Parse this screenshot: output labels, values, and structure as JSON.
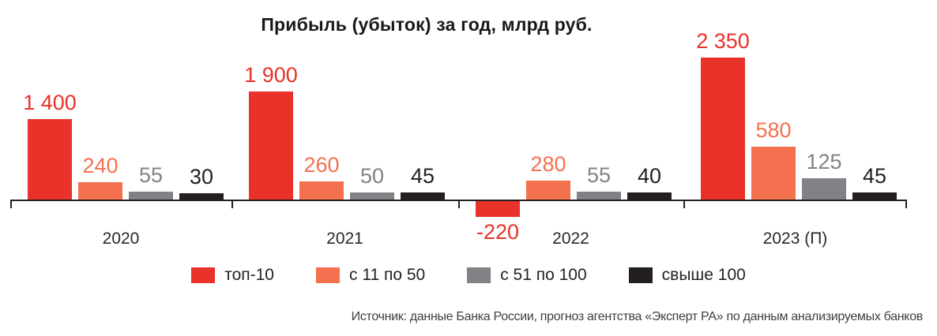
{
  "title": "Прибыль (убыток) за год, млрд руб.",
  "source": "Источник: данные Банка России, прогноз агентства «Эксперт РА» по данным анализируемых банков",
  "chart_data": {
    "type": "bar",
    "title": "Прибыль (убыток) за год, млрд руб.",
    "unit": "млрд руб.",
    "categories": [
      "2020",
      "2021",
      "2022",
      "2023 (П)"
    ],
    "series": [
      {
        "name": "топ-10",
        "color": "#e93229",
        "values": [
          1400,
          1900,
          -220,
          2350
        ],
        "labels": [
          "1 400",
          "1 900",
          "-220",
          "2 350"
        ]
      },
      {
        "name": "с 11 по 50",
        "color": "#f4714f",
        "values": [
          240,
          260,
          280,
          580
        ],
        "labels": [
          "240",
          "260",
          "280",
          "580"
        ]
      },
      {
        "name": "с 51 по 100",
        "color": "#808285",
        "values": [
          55,
          50,
          55,
          125
        ],
        "labels": [
          "55",
          "50",
          "55",
          "125"
        ]
      },
      {
        "name": "свыше 100",
        "color": "#231f20",
        "values": [
          30,
          45,
          40,
          45
        ],
        "labels": [
          "30",
          "45",
          "40",
          "45"
        ]
      }
    ],
    "legend_position": "bottom",
    "grid": false,
    "axis": {
      "x_baseline": true,
      "y_axis_visible": false
    }
  }
}
